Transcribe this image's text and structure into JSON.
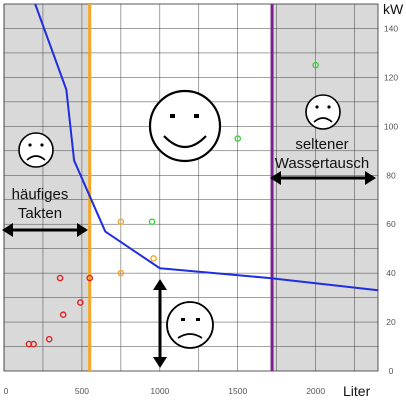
{
  "chart_data": {
    "type": "line",
    "xlabel": "Liter",
    "ylabel": "kW",
    "xlim": [
      0,
      2400
    ],
    "ylim": [
      0,
      150
    ],
    "xticks": [
      0,
      500,
      1000,
      1500,
      2000
    ],
    "yticks": [
      0,
      20,
      40,
      60,
      80,
      100,
      120,
      140
    ],
    "grid": true,
    "shaded_regions": [
      {
        "from": 0,
        "to": 550,
        "color": "#d9d9d9"
      },
      {
        "from": 1720,
        "to": 2400,
        "color": "#d9d9d9"
      }
    ],
    "vertical_lines": [
      {
        "x": 550,
        "color": "#f5a623"
      },
      {
        "x": 1720,
        "color": "#7b1f8c"
      }
    ],
    "series": [
      {
        "type": "line",
        "color": "#1f2ee0",
        "x": [
          200,
          400,
          450,
          650,
          1000,
          1700,
          2400
        ],
        "y": [
          150,
          115,
          86,
          57,
          42,
          38,
          33
        ]
      },
      {
        "type": "scatter",
        "color": "#e02020",
        "x": [
          160,
          190,
          290,
          380,
          490,
          550,
          360
        ],
        "y": [
          11,
          11,
          13,
          23,
          28,
          38,
          38
        ]
      },
      {
        "type": "scatter",
        "color": "#f5a623",
        "x": [
          750,
          750,
          960
        ],
        "y": [
          61,
          40,
          46
        ]
      },
      {
        "type": "scatter",
        "color": "#3ecf3e",
        "x": [
          950,
          1500,
          2000
        ],
        "y": [
          61,
          95,
          125
        ]
      }
    ],
    "annotations": [
      {
        "text_lines": [
          "häufiges",
          "Takten"
        ],
        "icon": "sad-face-icon"
      },
      {
        "text_lines": [
          "seltener",
          "Wassertausch"
        ],
        "icon": "sad-face-icon"
      },
      {
        "text_lines": [],
        "icon": "happy-face-icon"
      },
      {
        "text_lines": [],
        "icon": "sad-face-icon"
      }
    ]
  }
}
